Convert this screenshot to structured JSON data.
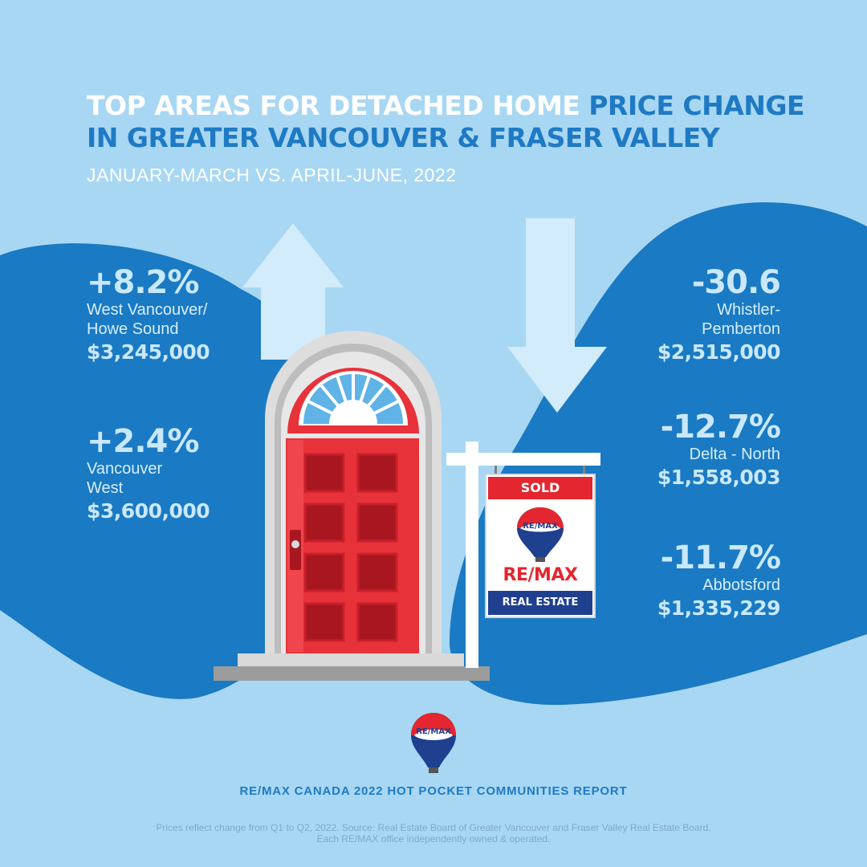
{
  "title": {
    "part1": "TOP AREAS FOR DETACHED HOME ",
    "part2": "PRICE CHANGE",
    "line2": "IN GREATER VANCOUVER & FRASER VALLEY"
  },
  "subtitle": "JANUARY-MARCH VS. APRIL-JUNE, 2022",
  "increases": [
    {
      "change": "+8.2%",
      "area": "West Vancouver/\nHowe Sound",
      "price": "$3,245,000"
    },
    {
      "change": "+2.4%",
      "area": "Vancouver\nWest",
      "price": "$3,600,000"
    }
  ],
  "decreases": [
    {
      "change": "-30.6",
      "area": "Whistler-\nPemberton",
      "price": "$2,515,000"
    },
    {
      "change": "-12.7%",
      "area": "Delta - North",
      "price": "$1,558,003"
    },
    {
      "change": "-11.7%",
      "area": "Abbotsford",
      "price": "$1,335,229"
    }
  ],
  "sign": {
    "sold": "SOLD",
    "balloon_text": "RE/MAX",
    "brand": "RE/MAX",
    "real_estate": "REAL ESTATE"
  },
  "footer": {
    "logo_text": "RE/MAX",
    "report": "RE/MAX CANADA 2022 HOT POCKET COMMUNITIES REPORT",
    "disclaimer_line1": "Prices reflect change from Q1 to Q2, 2022. Source: Real Estate Board of Greater Vancouver and Fraser Valley Real Estate Board.",
    "disclaimer_line2": "Each RE/MAX office independently owned & operated."
  },
  "colors": {
    "background": "#a8d7f3",
    "blob": "#1a7ac3",
    "accent_blue": "#1f7ac4",
    "door_red": "#e8323a",
    "remax_blue": "#1f3f8f"
  }
}
